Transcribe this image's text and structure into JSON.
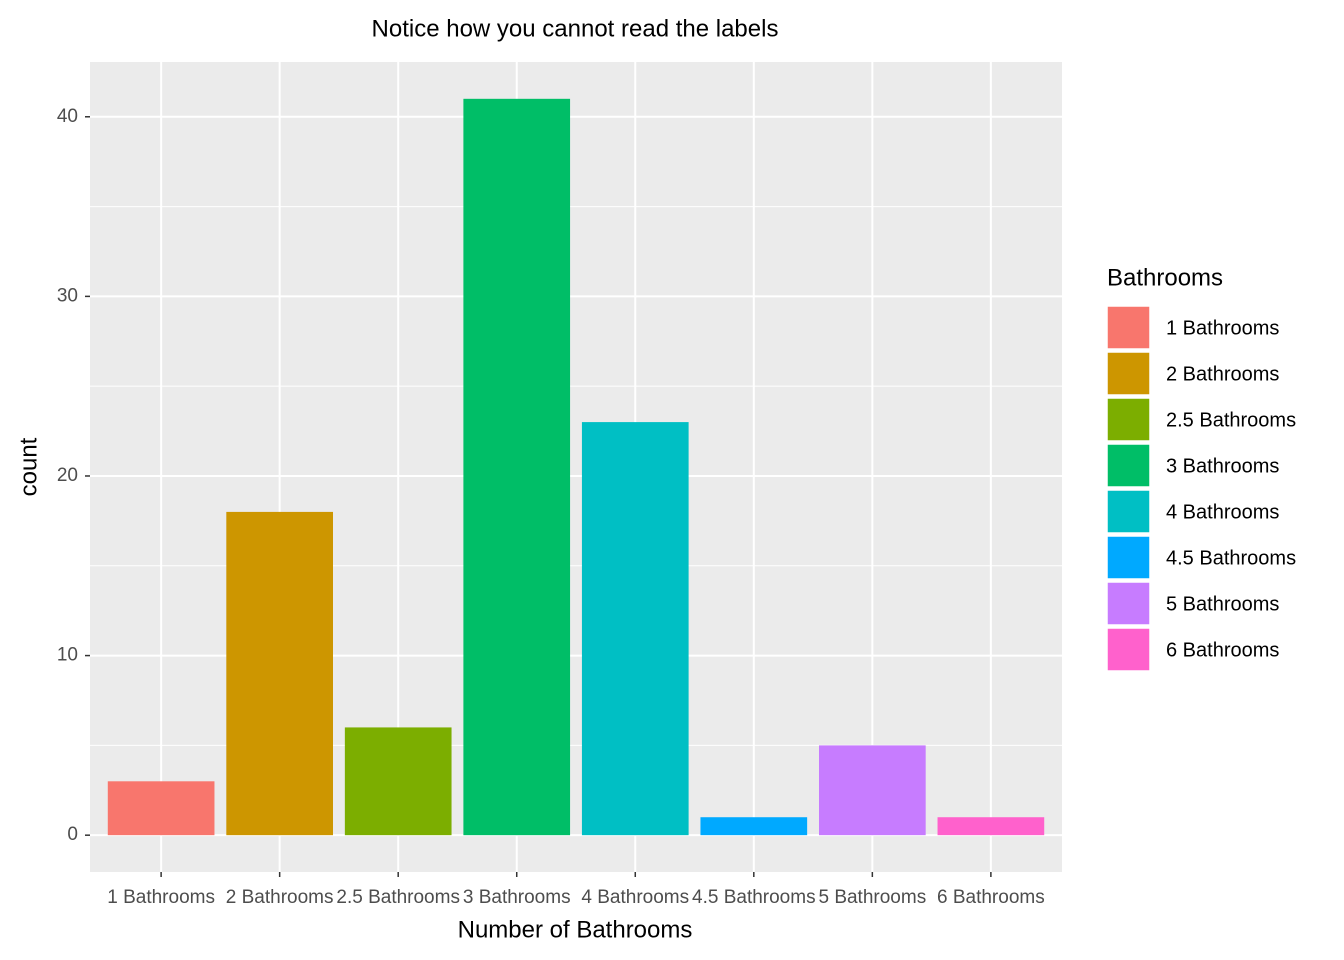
{
  "chart_data": {
    "type": "bar",
    "title": "Notice how you cannot read the labels",
    "x_label": "Number of Bathrooms",
    "y_label": "count",
    "legend_title": "Bathrooms",
    "categories": [
      "1 Bathrooms",
      "2 Bathrooms",
      "2.5 Bathrooms",
      "3 Bathrooms",
      "4 Bathrooms",
      "4.5 Bathrooms",
      "5 Bathrooms",
      "6 Bathrooms"
    ],
    "values": [
      3,
      18,
      6,
      41,
      23,
      1,
      5,
      1
    ],
    "colors": [
      "#F8766D",
      "#CD9600",
      "#7CAE00",
      "#00BE67",
      "#00BFC4",
      "#00A9FF",
      "#C77CFF",
      "#FF61CC"
    ],
    "ylim": [
      -2.05,
      43.05
    ],
    "yticks": [
      0,
      10,
      20,
      30,
      40
    ],
    "grid": true
  }
}
